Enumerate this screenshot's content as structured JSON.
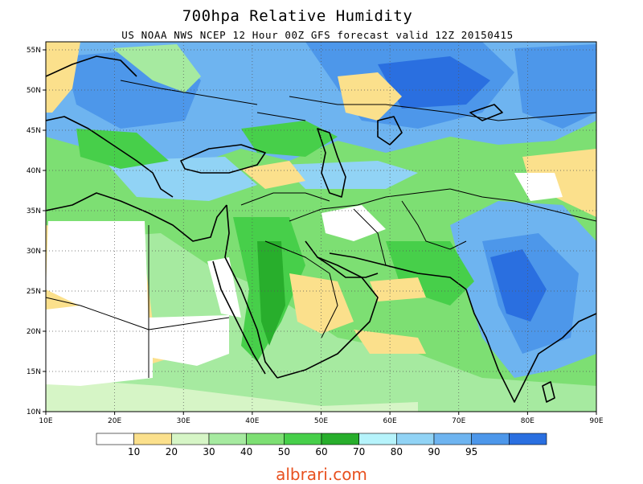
{
  "header": {
    "title": "700hpa Relative Humidity",
    "subtitle": "US NOAA NWS NCEP 12 Hour 00Z GFS forecast valid 12Z 20150415"
  },
  "map": {
    "lon_ticks": [
      "10E",
      "20E",
      "30E",
      "40E",
      "50E",
      "60E",
      "70E",
      "80E",
      "90E"
    ],
    "lat_ticks": [
      "55N",
      "50N",
      "45N",
      "40N",
      "35N",
      "30N",
      "25N",
      "20N",
      "15N",
      "10N"
    ],
    "lon_range": [
      10,
      90
    ],
    "lat_range": [
      10,
      56
    ],
    "gridlines": "dotted"
  },
  "legend": {
    "boundaries": [
      "10",
      "20",
      "30",
      "40",
      "50",
      "60",
      "70",
      "80",
      "90",
      "95"
    ],
    "colors": [
      "#ffffff",
      "#fbe08c",
      "#d6f5c6",
      "#a6eaa0",
      "#7ddf73",
      "#47cf4a",
      "#28ae2c",
      "#b6f3fb",
      "#91d3f5",
      "#6eb4f0",
      "#4d97ea",
      "#2a6fe0"
    ]
  },
  "footer": {
    "watermark": "albrari.com"
  }
}
